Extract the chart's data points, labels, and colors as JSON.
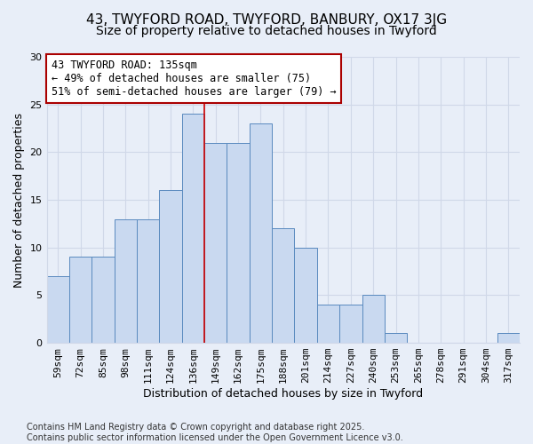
{
  "title1": "43, TWYFORD ROAD, TWYFORD, BANBURY, OX17 3JG",
  "title2": "Size of property relative to detached houses in Twyford",
  "xlabel": "Distribution of detached houses by size in Twyford",
  "ylabel": "Number of detached properties",
  "categories": [
    "59sqm",
    "72sqm",
    "85sqm",
    "98sqm",
    "111sqm",
    "124sqm",
    "136sqm",
    "149sqm",
    "162sqm",
    "175sqm",
    "188sqm",
    "201sqm",
    "214sqm",
    "227sqm",
    "240sqm",
    "253sqm",
    "265sqm",
    "278sqm",
    "291sqm",
    "304sqm",
    "317sqm"
  ],
  "values": [
    7,
    9,
    9,
    13,
    13,
    16,
    24,
    21,
    21,
    23,
    12,
    10,
    4,
    4,
    5,
    1,
    0,
    0,
    0,
    0,
    1
  ],
  "bar_color": "#c9d9f0",
  "bar_edge_color": "#5a8abf",
  "annotation_line1": "43 TWYFORD ROAD: 135sqm",
  "annotation_line2": "← 49% of detached houses are smaller (75)",
  "annotation_line3": "51% of semi-detached houses are larger (79) →",
  "annotation_box_color": "#ffffff",
  "annotation_box_edge_color": "#aa0000",
  "subject_bar_index": 6,
  "red_line_color": "#cc0000",
  "ylim": [
    0,
    30
  ],
  "yticks": [
    0,
    5,
    10,
    15,
    20,
    25,
    30
  ],
  "background_color": "#e8eef8",
  "grid_color": "#d0d8e8",
  "footer": "Contains HM Land Registry data © Crown copyright and database right 2025.\nContains public sector information licensed under the Open Government Licence v3.0.",
  "title1_fontsize": 11,
  "title2_fontsize": 10,
  "xlabel_fontsize": 9,
  "ylabel_fontsize": 9,
  "tick_fontsize": 8,
  "annotation_fontsize": 8.5,
  "footer_fontsize": 7
}
